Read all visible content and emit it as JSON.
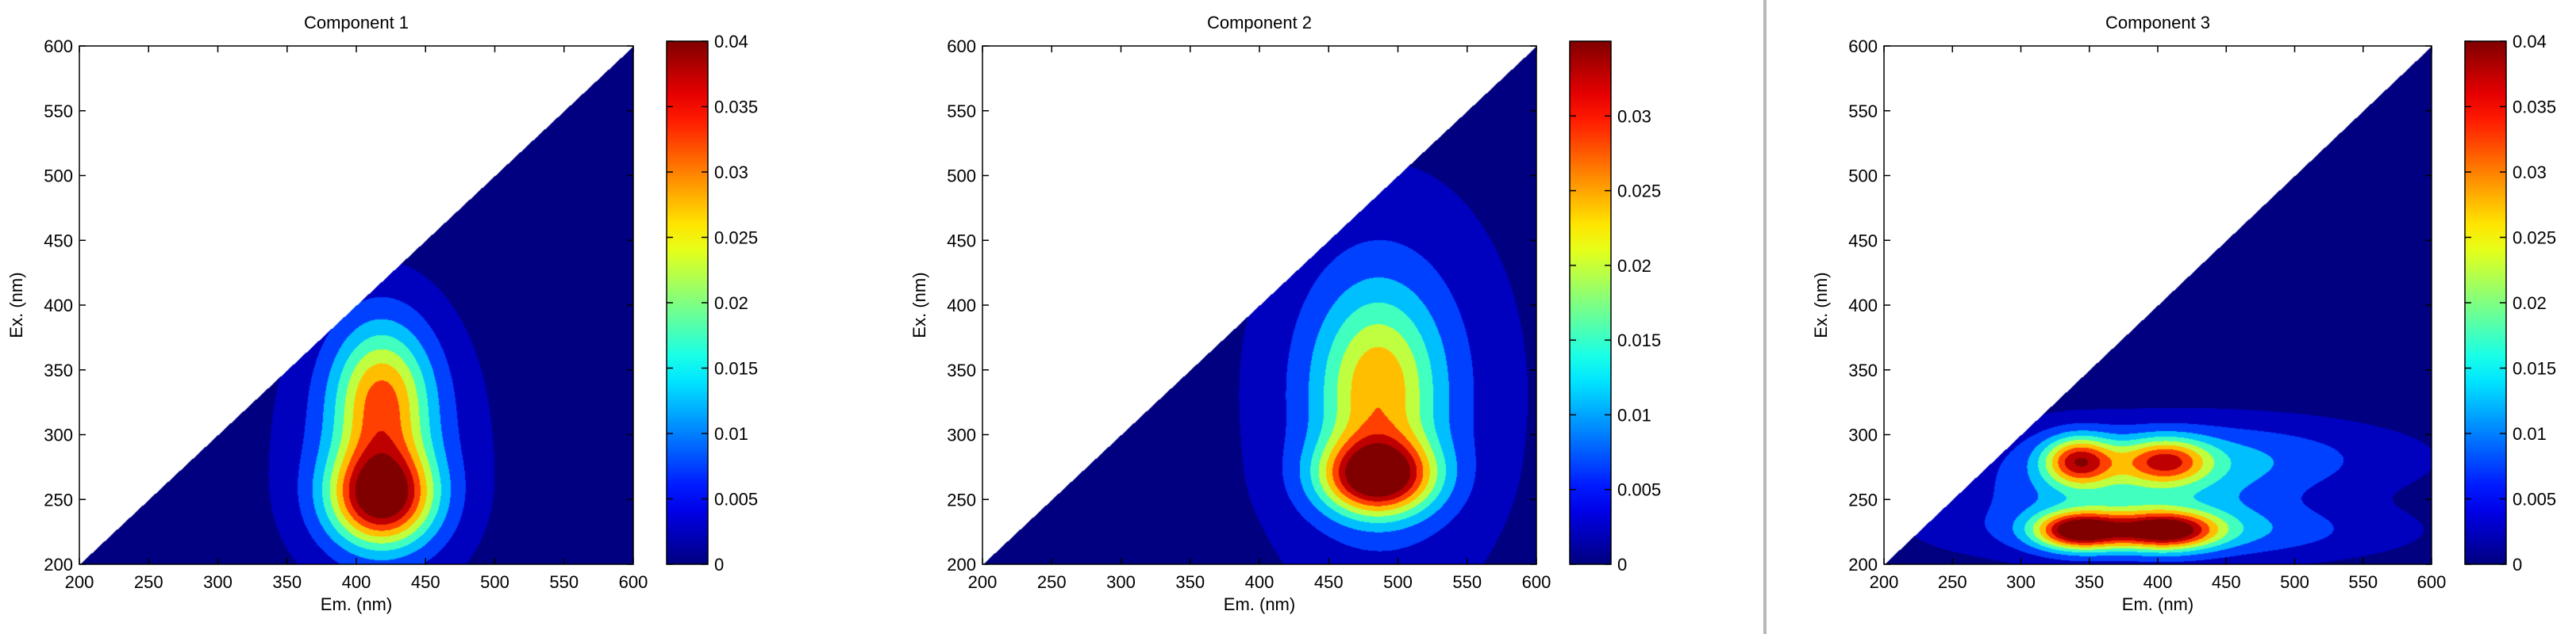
{
  "chart_data": [
    {
      "type": "heatmap",
      "title": "Component 1",
      "xlabel": "Em. (nm)",
      "ylabel": "Ex. (nm)",
      "xlim": [
        200,
        600
      ],
      "ylim": [
        200,
        600
      ],
      "xticks": [
        "200",
        "250",
        "300",
        "350",
        "400",
        "450",
        "500",
        "550",
        "600"
      ],
      "yticks": [
        "200",
        "250",
        "300",
        "350",
        "400",
        "450",
        "500",
        "550",
        "600"
      ],
      "colorbar": {
        "range": [
          0,
          0.04
        ],
        "ticks": [
          "0",
          "0.005",
          "0.01",
          "0.015",
          "0.02",
          "0.025",
          "0.03",
          "0.035",
          "0.04"
        ],
        "tick_values": [
          0,
          0.005,
          0.01,
          0.015,
          0.02,
          0.025,
          0.03,
          0.035,
          0.04
        ]
      },
      "masked_region": "excitation above emission (upper-left triangle) is blank",
      "peaks": [
        {
          "em": 418,
          "ex": 252,
          "value": 0.04
        },
        {
          "em": 418,
          "ex": 322,
          "value": 0.03
        }
      ]
    },
    {
      "type": "heatmap",
      "title": "Component 2",
      "xlabel": "Em. (nm)",
      "ylabel": "Ex. (nm)",
      "xlim": [
        200,
        600
      ],
      "ylim": [
        200,
        600
      ],
      "xticks": [
        "200",
        "250",
        "300",
        "350",
        "400",
        "450",
        "500",
        "550",
        "600"
      ],
      "yticks": [
        "200",
        "250",
        "300",
        "350",
        "400",
        "450",
        "500",
        "550",
        "600"
      ],
      "colorbar": {
        "range": [
          0,
          0.035
        ],
        "ticks": [
          "0",
          "0.005",
          "0.01",
          "0.015",
          "0.02",
          "0.025",
          "0.03"
        ],
        "tick_values": [
          0,
          0.005,
          0.01,
          0.015,
          0.02,
          0.025,
          0.03
        ]
      },
      "masked_region": "excitation above emission (upper-left triangle) is blank",
      "peaks": [
        {
          "em": 485,
          "ex": 268,
          "value": 0.035
        },
        {
          "em": 485,
          "ex": 340,
          "value": 0.021
        }
      ]
    },
    {
      "type": "heatmap",
      "title": "Component 3",
      "xlabel": "Em. (nm)",
      "ylabel": "Ex. (nm)",
      "xlim": [
        200,
        600
      ],
      "ylim": [
        200,
        600
      ],
      "xticks": [
        "200",
        "250",
        "300",
        "350",
        "400",
        "450",
        "500",
        "550",
        "600"
      ],
      "yticks": [
        "200",
        "250",
        "300",
        "350",
        "400",
        "450",
        "500",
        "550",
        "600"
      ],
      "colorbar": {
        "range": [
          0,
          0.04
        ],
        "ticks": [
          "0",
          "0.005",
          "0.01",
          "0.015",
          "0.02",
          "0.025",
          "0.03",
          "0.035",
          "0.04"
        ],
        "tick_values": [
          0,
          0.005,
          0.01,
          0.015,
          0.02,
          0.025,
          0.03,
          0.035,
          0.04
        ]
      },
      "masked_region": "excitation above emission (upper-left triangle) is blank",
      "peaks": [
        {
          "em": 342,
          "ex": 226,
          "value": 0.04
        },
        {
          "em": 405,
          "ex": 226,
          "value": 0.037
        },
        {
          "em": 342,
          "ex": 280,
          "value": 0.032
        },
        {
          "em": 405,
          "ex": 280,
          "value": 0.025
        }
      ]
    }
  ]
}
